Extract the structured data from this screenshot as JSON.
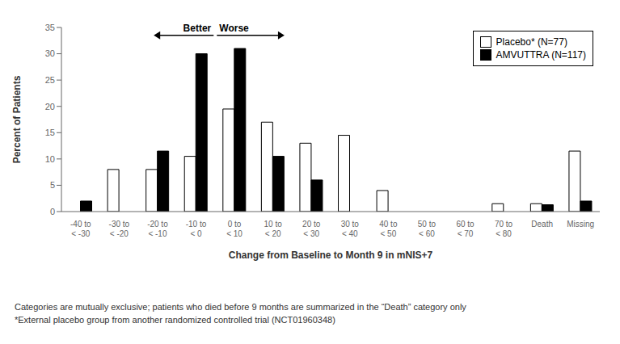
{
  "chart_data": {
    "type": "bar",
    "categories": [
      "-40 to\n< -30",
      "-30 to\n< -20",
      "-20 to\n< -10",
      "-10 to\n< 0",
      "0 to\n< 10",
      "10 to\n< 20",
      "20 to\n< 30",
      "30 to\n< 40",
      "40 to\n< 50",
      "50 to\n< 60",
      "60 to\n< 70",
      "70 to\n< 80",
      "Death",
      "Missing"
    ],
    "series": [
      {
        "name": "Placebo* (N=77)",
        "color": "#ffffff",
        "values": [
          0,
          8,
          8,
          10.5,
          19.5,
          17,
          13,
          14.5,
          4,
          0,
          0,
          1.5,
          1.5,
          11.5
        ]
      },
      {
        "name": "AMVUTTRA (N=117)",
        "color": "#000000",
        "values": [
          2,
          0,
          11.5,
          30,
          31,
          10.5,
          6,
          0,
          0,
          0,
          0,
          0,
          1.3,
          2
        ]
      }
    ],
    "xlabel": "Change from Baseline to Month 9 in mNIS+7",
    "ylabel": "Percent of Patients",
    "ylim": [
      0,
      35
    ],
    "yticks": [
      0,
      5,
      10,
      15,
      20,
      25,
      30,
      35
    ],
    "legend": "upper right",
    "annotations": [
      "Better",
      "Worse"
    ],
    "footnotes": [
      "Categories are mutually exclusive; patients who died before 9 months are summarized in the “Death” category only",
      "*External placebo group from another randomized controlled trial (NCT01960348)"
    ]
  }
}
